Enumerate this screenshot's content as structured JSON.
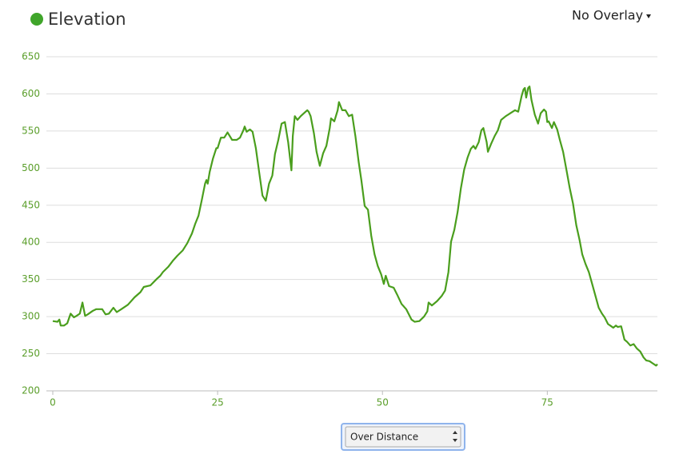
{
  "chart_data": {
    "type": "line",
    "title": "Elevation",
    "color": "#4a9e1d",
    "x": [
      0,
      0.7,
      1.0,
      1.2,
      1.7,
      2.2,
      2.7,
      3.2,
      3.6,
      4.1,
      4.5,
      4.9,
      5.3,
      6.1,
      6.6,
      7.5,
      8.0,
      8.5,
      9.2,
      9.7,
      10.4,
      11.4,
      12.4,
      13.3,
      13.8,
      14.8,
      15.8,
      16.3,
      16.7,
      17.5,
      18.2,
      18.9,
      19.7,
      20.4,
      21.1,
      21.6,
      22.1,
      22.6,
      23.1,
      23.3,
      23.5,
      23.8,
      24.3,
      24.8,
      25.0,
      25.5,
      26.0,
      26.5,
      27.2,
      27.9,
      28.4,
      28.9,
      29.1,
      29.4,
      29.9,
      30.3,
      30.8,
      31.3,
      31.8,
      32.3,
      32.8,
      33.3,
      33.7,
      34.2,
      34.7,
      35.2,
      35.7,
      36.2,
      36.4,
      36.7,
      37.1,
      37.6,
      38.1,
      38.6,
      38.8,
      39.1,
      39.6,
      40.0,
      40.5,
      41.0,
      41.5,
      42.0,
      42.2,
      42.7,
      43.2,
      43.4,
      43.9,
      44.4,
      44.9,
      45.4,
      45.9,
      46.4,
      46.8,
      47.3,
      47.8,
      48.3,
      48.8,
      49.3,
      49.8,
      50.2,
      50.5,
      51.0,
      51.7,
      52.2,
      52.9,
      53.6,
      54.4,
      54.9,
      55.6,
      56.3,
      56.8,
      57.0,
      57.5,
      58.3,
      59.0,
      59.5,
      60.0,
      60.4,
      60.9,
      61.4,
      61.9,
      62.4,
      62.9,
      63.4,
      63.8,
      64.1,
      64.6,
      65.0,
      65.3,
      65.8,
      66.0,
      66.5,
      67.0,
      67.5,
      68.0,
      68.7,
      69.4,
      70.1,
      70.6,
      71.1,
      71.4,
      71.6,
      71.8,
      72.1,
      72.3,
      72.6,
      73.1,
      73.6,
      73.8,
      74.0,
      74.5,
      74.8,
      75.0,
      75.2,
      75.7,
      76.0,
      76.5,
      76.9,
      77.4,
      77.9,
      78.4,
      78.9,
      79.4,
      79.9,
      80.3,
      80.8,
      81.3,
      81.8,
      82.3,
      82.8,
      83.3,
      83.7,
      84.2,
      84.7,
      85.0,
      85.4,
      85.7,
      86.2,
      86.7,
      87.1,
      87.6,
      88.1,
      88.6,
      89.1,
      89.6,
      90.0,
      90.5,
      91.0,
      91.5,
      91.7
    ],
    "values": [
      294,
      293,
      296,
      288,
      288,
      291,
      304,
      299,
      301,
      304,
      319,
      301,
      303,
      308,
      310,
      310,
      303,
      304,
      312,
      306,
      310,
      316,
      326,
      333,
      340,
      342,
      351,
      355,
      360,
      367,
      375,
      382,
      389,
      399,
      412,
      425,
      436,
      457,
      479,
      484,
      479,
      495,
      513,
      527,
      527,
      541,
      541,
      548,
      538,
      538,
      541,
      551,
      556,
      549,
      552,
      549,
      527,
      495,
      463,
      456,
      479,
      490,
      519,
      538,
      560,
      562,
      535,
      497,
      543,
      570,
      565,
      570,
      574,
      578,
      576,
      570,
      547,
      522,
      503,
      520,
      530,
      554,
      567,
      563,
      578,
      589,
      578,
      578,
      570,
      572,
      543,
      508,
      484,
      449,
      444,
      409,
      384,
      368,
      357,
      344,
      355,
      341,
      339,
      330,
      317,
      310,
      296,
      293,
      294,
      300,
      307,
      319,
      315,
      321,
      328,
      335,
      360,
      401,
      417,
      441,
      473,
      498,
      514,
      526,
      530,
      526,
      535,
      551,
      554,
      535,
      522,
      533,
      543,
      551,
      565,
      570,
      574,
      578,
      576,
      597,
      606,
      608,
      595,
      608,
      610,
      592,
      572,
      560,
      567,
      574,
      579,
      576,
      562,
      563,
      554,
      562,
      552,
      538,
      522,
      498,
      473,
      452,
      423,
      403,
      384,
      371,
      360,
      344,
      328,
      312,
      304,
      299,
      290,
      287,
      285,
      288,
      286,
      287,
      269,
      266,
      261,
      263,
      257,
      253,
      245,
      241,
      240,
      237,
      234,
      236
    ],
    "xlim": [
      0,
      91.7
    ],
    "xticks": [
      0,
      25,
      50,
      75
    ],
    "ylim": [
      200,
      650
    ],
    "yticks": [
      200,
      250,
      300,
      350,
      400,
      450,
      500,
      550,
      600,
      650
    ],
    "grid": true
  },
  "overlay": "No Overlay",
  "mode_select": "Over Distance"
}
